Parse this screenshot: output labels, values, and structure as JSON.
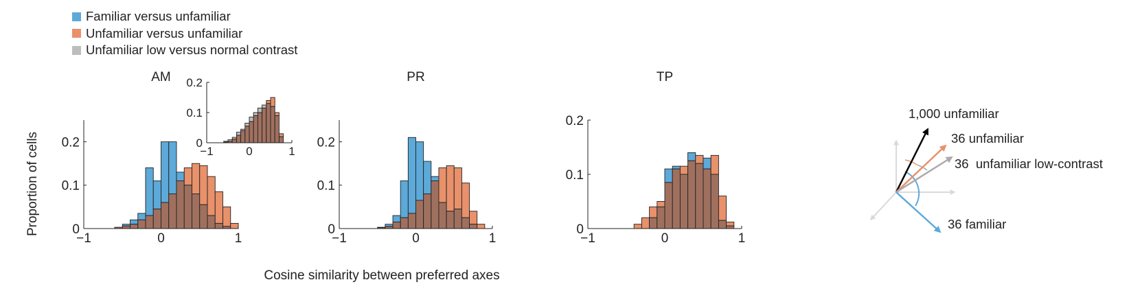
{
  "colors": {
    "familiar": "#5da9d9",
    "unfamiliar": "#e8916b",
    "overlap": "#a0705f",
    "low_contrast": "#bdbdbd",
    "axis": "#222222"
  },
  "legend": [
    {
      "label": "Familiar versus unfamiliar",
      "color": "#5da9d9"
    },
    {
      "label": "Unfamiliar versus unfamiliar",
      "color": "#e8916b"
    },
    {
      "label": "Unfamiliar low versus normal contrast",
      "color": "#bdbdbd"
    }
  ],
  "shared_labels": {
    "ylabel": "Proportion of cells",
    "xlabel": "Cosine similarity between preferred axes"
  },
  "chart_data": [
    {
      "type": "bar",
      "title": "AM",
      "bin_edges_start": -0.9,
      "bin_width": 0.1,
      "xlim": [
        -1,
        1
      ],
      "ylim": [
        0,
        0.25
      ],
      "xticks": [
        "−1",
        "0",
        "1"
      ],
      "yticks": [
        "0",
        "0.1",
        "0.2"
      ],
      "series": [
        {
          "name": "Familiar versus unfamiliar",
          "values": [
            0,
            0,
            0,
            0.003,
            0.01,
            0.02,
            0.035,
            0.14,
            0.11,
            0.2,
            0.2,
            0.13,
            0.1,
            0.08,
            0.055,
            0.03,
            0.012,
            0.005,
            0
          ]
        },
        {
          "name": "Unfamiliar versus unfamiliar",
          "values": [
            0,
            0,
            0,
            0.003,
            0.006,
            0.01,
            0.02,
            0.03,
            0.045,
            0.06,
            0.08,
            0.11,
            0.14,
            0.15,
            0.145,
            0.12,
            0.085,
            0.05,
            0.012
          ]
        }
      ]
    },
    {
      "type": "bar",
      "title": "AM inset",
      "bin_edges_start": -0.9,
      "bin_width": 0.1,
      "xlim": [
        -1,
        1
      ],
      "ylim": [
        0,
        0.2
      ],
      "xticks": [
        "−1",
        "0",
        "1"
      ],
      "yticks": [
        "0",
        "0.1",
        "0.2"
      ],
      "series": [
        {
          "name": "Unfamiliar low versus normal contrast",
          "values": [
            0,
            0,
            0,
            0.005,
            0.01,
            0.018,
            0.035,
            0.045,
            0.065,
            0.085,
            0.1,
            0.115,
            0.125,
            0.13,
            0.12,
            0.09,
            0.02,
            0,
            0
          ]
        },
        {
          "name": "Unfamiliar versus unfamiliar",
          "values": [
            0,
            0,
            0,
            0.002,
            0.005,
            0.012,
            0.025,
            0.04,
            0.055,
            0.07,
            0.09,
            0.1,
            0.115,
            0.14,
            0.15,
            0.1,
            0.03,
            0,
            0
          ]
        }
      ]
    },
    {
      "type": "bar",
      "title": "PR",
      "bin_edges_start": -0.9,
      "bin_width": 0.1,
      "xlim": [
        -1,
        1
      ],
      "ylim": [
        0,
        0.25
      ],
      "xticks": [
        "−1",
        "0",
        "1"
      ],
      "yticks": [
        "0",
        "0.1",
        "0.2"
      ],
      "series": [
        {
          "name": "Familiar versus unfamiliar",
          "values": [
            0,
            0,
            0,
            0,
            0.003,
            0.01,
            0.03,
            0.11,
            0.21,
            0.2,
            0.155,
            0.12,
            0.06,
            0.04,
            0.045,
            0.025,
            0.01,
            0,
            0
          ]
        },
        {
          "name": "Unfamiliar versus unfamiliar",
          "values": [
            0,
            0,
            0,
            0,
            0.002,
            0.005,
            0.015,
            0.025,
            0.035,
            0.065,
            0.08,
            0.11,
            0.14,
            0.145,
            0.14,
            0.105,
            0.04,
            0.01,
            0
          ]
        }
      ]
    },
    {
      "type": "bar",
      "title": "TP",
      "bin_edges_start": -0.9,
      "bin_width": 0.1,
      "xlim": [
        -1,
        1
      ],
      "ylim": [
        0,
        0.2
      ],
      "xticks": [
        "−1",
        "0",
        "1"
      ],
      "yticks": [
        "0",
        "0.1",
        "0.2"
      ],
      "series": [
        {
          "name": "Familiar versus unfamiliar",
          "values": [
            0,
            0,
            0,
            0,
            0,
            0,
            0,
            0.02,
            0.04,
            0.11,
            0.115,
            0.1,
            0.14,
            0.12,
            0.13,
            0.1,
            0.015,
            0.005,
            0
          ]
        },
        {
          "name": "Unfamiliar versus unfamiliar",
          "values": [
            0,
            0,
            0,
            0,
            0,
            0.008,
            0.02,
            0.04,
            0.05,
            0.085,
            0.11,
            0.115,
            0.125,
            0.135,
            0.11,
            0.135,
            0.06,
            0.012,
            0
          ]
        }
      ]
    }
  ],
  "schematic": {
    "arrows": [
      {
        "label": "1,000 unfamiliar",
        "color": "#000000"
      },
      {
        "label": "36 unfamiliar",
        "color": "#e8916b"
      },
      {
        "label": "36  unfamiliar low-contrast",
        "color": "#aaaaaa"
      },
      {
        "label": "36 familiar",
        "color": "#5da9d9"
      }
    ]
  }
}
